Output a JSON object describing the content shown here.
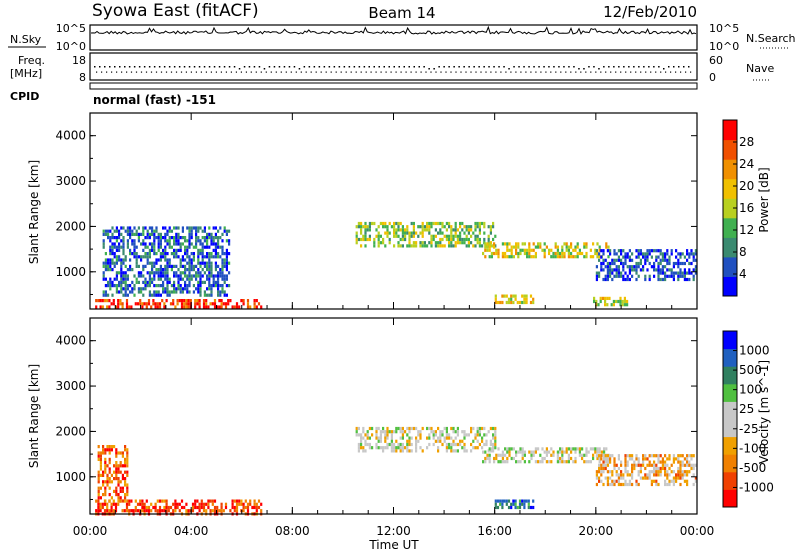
{
  "header": {
    "title_left": "Syowa East (fitACF)",
    "title_center": "Beam 14",
    "title_right": "12/Feb/2010"
  },
  "nsky": {
    "label": "N.Sky",
    "ticks_left": [
      "10^5",
      "10^0"
    ],
    "ticks_right": [
      "10^5",
      "10^0"
    ],
    "right_label": "N.Search"
  },
  "freq": {
    "label_line1": "Freq.",
    "label_line2": "[MHz]",
    "ticks_left": [
      "18",
      "8"
    ],
    "ticks_right": [
      "60",
      "0"
    ],
    "right_label": "Nave"
  },
  "cpid": {
    "label": "CPID",
    "mode": "normal (fast) -151"
  },
  "axes": {
    "ylabel": "Slant Range [km]",
    "xlabel": "Time UT",
    "yticks": [
      "4000",
      "3000",
      "2000",
      "1000"
    ],
    "xticks": [
      "00:00",
      "04:00",
      "08:00",
      "12:00",
      "16:00",
      "20:00",
      "00:00"
    ]
  },
  "chart_data": [
    {
      "type": "heatmap",
      "title": "",
      "xlabel": "",
      "ylabel": "Slant Range [km]",
      "x_range_hours": [
        0,
        24
      ],
      "ylim": [
        180,
        4500
      ],
      "colorbar": {
        "label": "Power [dB]",
        "ticks": [
          "28",
          "24",
          "20",
          "16",
          "12",
          "8",
          "4"
        ],
        "colors": [
          "#0000ff",
          "#2050c0",
          "#3a8a70",
          "#40b050",
          "#b8d020",
          "#f0c000",
          "#f09000",
          "#f05000",
          "#ff0000"
        ]
      },
      "echo_regions": [
        {
          "t0": 0.2,
          "t1": 6.8,
          "r0": 200,
          "r1": 400,
          "level": 0.9
        },
        {
          "t0": 0.5,
          "t1": 5.5,
          "r0": 500,
          "r1": 2000,
          "level": 0.2
        },
        {
          "t0": 10.5,
          "t1": 16.0,
          "r0": 1550,
          "r1": 2100,
          "level": 0.45
        },
        {
          "t0": 15.5,
          "t1": 20.5,
          "r0": 1300,
          "r1": 1650,
          "level": 0.55
        },
        {
          "t0": 16.0,
          "t1": 17.5,
          "r0": 300,
          "r1": 500,
          "level": 0.6
        },
        {
          "t0": 20.0,
          "t1": 24.0,
          "r0": 800,
          "r1": 1500,
          "level": 0.15
        },
        {
          "t0": 19.8,
          "t1": 21.2,
          "r0": 300,
          "r1": 450,
          "level": 0.5
        }
      ]
    },
    {
      "type": "heatmap",
      "title": "",
      "xlabel": "Time UT",
      "ylabel": "Slant Range [km]",
      "x_range_hours": [
        0,
        24
      ],
      "ylim": [
        180,
        4500
      ],
      "colorbar": {
        "label": "Velocity [m s^-1]",
        "ticks": [
          "1000",
          "500",
          "100",
          "25",
          "-25",
          "-100",
          "-500",
          "-1000"
        ],
        "colors": [
          "#ff0000",
          "#f04000",
          "#f08000",
          "#f0a000",
          "#c8c8c8",
          "#c8c8c8",
          "#50c040",
          "#308060",
          "#2060c0",
          "#0000ff"
        ]
      },
      "echo_regions": [
        {
          "t0": 0.2,
          "t1": 6.8,
          "r0": 200,
          "r1": 500,
          "level": 0.15
        },
        {
          "t0": 0.3,
          "t1": 1.5,
          "r0": 500,
          "r1": 1700,
          "level": 0.2
        },
        {
          "t0": 10.5,
          "t1": 16.0,
          "r0": 1550,
          "r1": 2100,
          "level": 0.5
        },
        {
          "t0": 15.5,
          "t1": 20.5,
          "r0": 1300,
          "r1": 1650,
          "level": 0.5
        },
        {
          "t0": 16.0,
          "t1": 17.5,
          "r0": 300,
          "r1": 500,
          "level": 0.8
        },
        {
          "t0": 20.0,
          "t1": 24.0,
          "r0": 800,
          "r1": 1500,
          "level": 0.35
        }
      ]
    }
  ]
}
